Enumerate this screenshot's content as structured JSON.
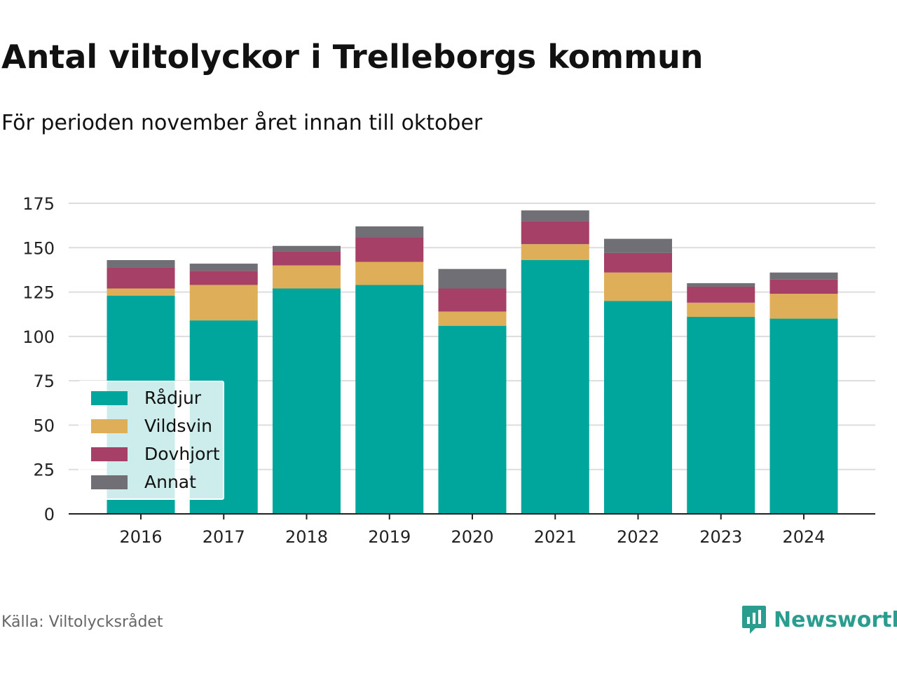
{
  "title": "Antal viltolyckor i Trelleborgs kommun",
  "subtitle": "För perioden november året innan till oktober",
  "source": "Källa: Viltolycksrådet",
  "brand": {
    "name": "Newsworthy",
    "icon": "newsworthy-logo-icon",
    "color": "#2a9d8f"
  },
  "chart_data": {
    "type": "bar",
    "stacked": true,
    "categories": [
      "2016",
      "2017",
      "2018",
      "2019",
      "2020",
      "2021",
      "2022",
      "2023",
      "2024"
    ],
    "series": [
      {
        "name": "Rådjur",
        "color": "#00a69c",
        "values": [
          123,
          109,
          127,
          129,
          106,
          143,
          120,
          111,
          110
        ]
      },
      {
        "name": "Vildsvin",
        "color": "#deae59",
        "values": [
          4,
          20,
          13,
          13,
          8,
          9,
          16,
          8,
          14
        ]
      },
      {
        "name": "Dovhjort",
        "color": "#a64066",
        "values": [
          12,
          8,
          8,
          14,
          13,
          13,
          11,
          9,
          8
        ]
      },
      {
        "name": "Annat",
        "color": "#6f6f75",
        "values": [
          4,
          4,
          3,
          6,
          11,
          6,
          8,
          2,
          4
        ]
      }
    ],
    "yticks": [
      "0",
      "25",
      "50",
      "75",
      "100",
      "125",
      "150",
      "175"
    ],
    "ylim": [
      0,
      175
    ],
    "grid": true,
    "legend_position": "bottom-left"
  }
}
